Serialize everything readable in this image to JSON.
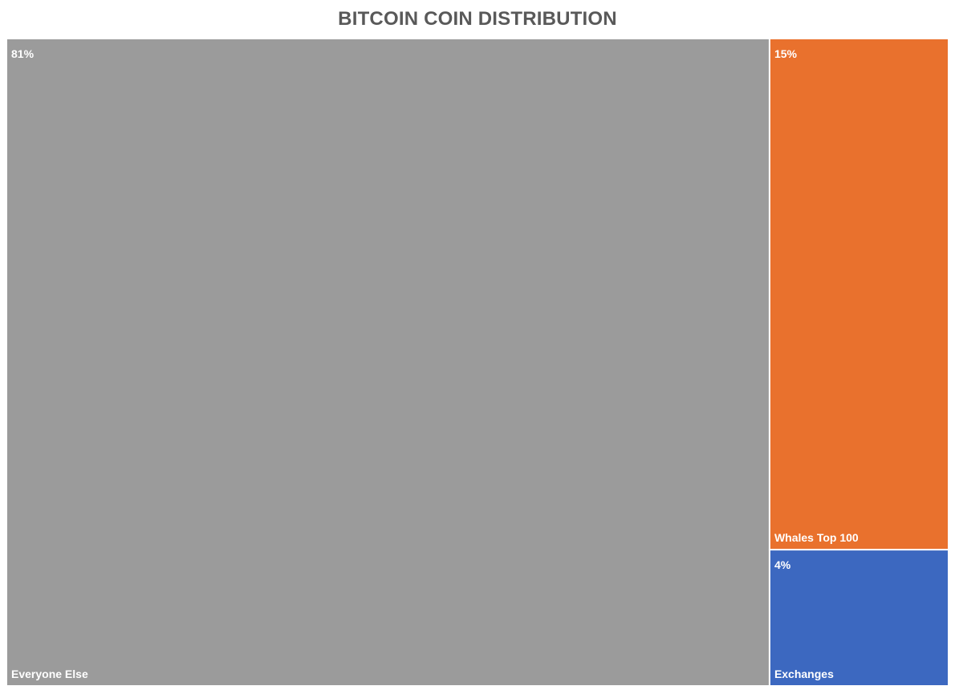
{
  "chart_data": {
    "type": "treemap",
    "title": "BITCOIN COIN DISTRIBUTION",
    "series": [
      {
        "name": "Everyone Else",
        "value": 81,
        "label": "81%",
        "color": "#9b9b9b"
      },
      {
        "name": "Whales Top 100",
        "value": 15,
        "label": "15%",
        "color": "#e9712d"
      },
      {
        "name": "Exchanges",
        "value": 4,
        "label": "4%",
        "color": "#3c68c0"
      }
    ],
    "legend": "none",
    "grid": false
  }
}
